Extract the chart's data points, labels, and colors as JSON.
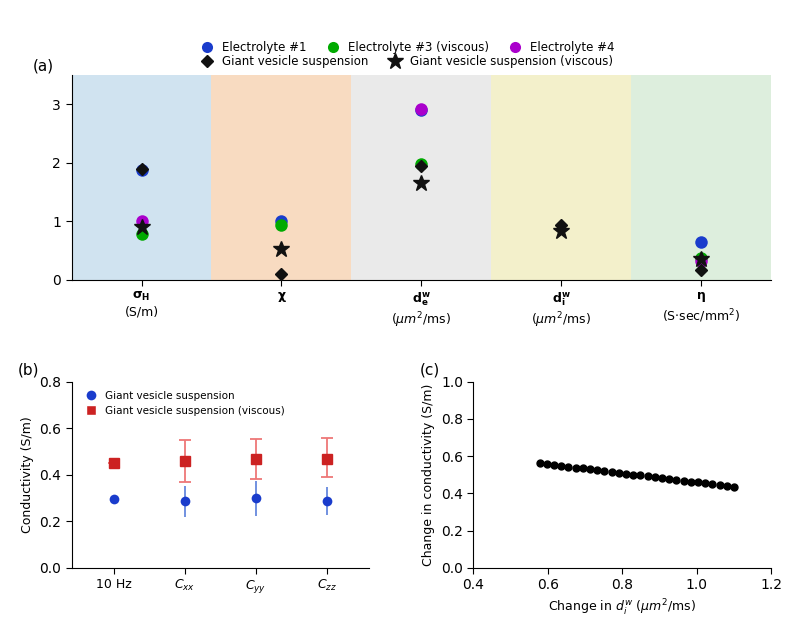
{
  "panel_a": {
    "bg_colors": [
      "#b8d4e8",
      "#f5c9a0",
      "#e0e0e0",
      "#ede8b0",
      "#cce5cc"
    ],
    "x_positions": [
      1,
      2,
      3,
      4,
      5
    ],
    "ylim": [
      0,
      3.5
    ],
    "yticks": [
      0,
      1,
      2,
      3
    ],
    "data": {
      "elec1": {
        "color": "#1a3ccc",
        "points": [
          [
            1,
            1.87
          ],
          [
            2,
            1.0
          ],
          [
            3,
            2.9
          ],
          [
            5,
            0.65
          ]
        ]
      },
      "elec3": {
        "color": "#00aa00",
        "points": [
          [
            1,
            0.78
          ],
          [
            2,
            0.93
          ],
          [
            3,
            1.97
          ],
          [
            5,
            0.38
          ]
        ]
      },
      "elec4": {
        "color": "#aa00cc",
        "points": [
          [
            1,
            1.0
          ],
          [
            3,
            2.92
          ],
          [
            5,
            0.32
          ]
        ]
      },
      "gvs": {
        "points": [
          [
            1,
            1.9
          ],
          [
            2,
            0.1
          ],
          [
            3,
            1.95
          ],
          [
            4,
            0.93
          ],
          [
            5,
            0.17
          ]
        ]
      },
      "gvs_v": {
        "points": [
          [
            1,
            0.9
          ],
          [
            2,
            0.52
          ],
          [
            3,
            1.65
          ],
          [
            4,
            0.83
          ],
          [
            5,
            0.35
          ]
        ]
      }
    }
  },
  "panel_b": {
    "x_labels": [
      "10 Hz",
      "$C_{xx}$",
      "$C_{yy}$",
      "$C_{zz}$"
    ],
    "xlim": [
      -0.6,
      3.6
    ],
    "ylim": [
      0,
      0.8
    ],
    "yticks": [
      0.0,
      0.2,
      0.4,
      0.6,
      0.8
    ],
    "blue_vals": [
      0.295,
      0.285,
      0.298,
      0.288
    ],
    "blue_err_lo": [
      0.0,
      0.065,
      0.075,
      0.06
    ],
    "blue_err_hi": [
      0.0,
      0.065,
      0.075,
      0.06
    ],
    "red_vals": [
      0.45,
      0.46,
      0.468,
      0.468
    ],
    "red_err_lo": [
      0.0,
      0.09,
      0.085,
      0.08
    ],
    "red_err_hi": [
      0.0,
      0.09,
      0.085,
      0.09
    ]
  },
  "panel_c": {
    "xlim": [
      0.4,
      1.2
    ],
    "ylim": [
      0,
      1.0
    ],
    "xticks": [
      0.4,
      0.6,
      0.8,
      1.0,
      1.2
    ],
    "yticks": [
      0,
      0.2,
      0.4,
      0.6,
      0.8,
      1.0
    ],
    "x_start": 0.578,
    "x_end": 1.1,
    "y_start": 0.562,
    "y_end": 0.435,
    "n_points": 28
  },
  "legend_a": {
    "row1": [
      "Electrolyte #1",
      "Electrolyte #3 (viscous)",
      "Electrolyte #4"
    ],
    "row1_colors": [
      "#1a3ccc",
      "#00aa00",
      "#aa00cc"
    ],
    "row2": [
      "Giant vesicle suspension",
      "Giant vesicle suspension (viscous)"
    ]
  }
}
